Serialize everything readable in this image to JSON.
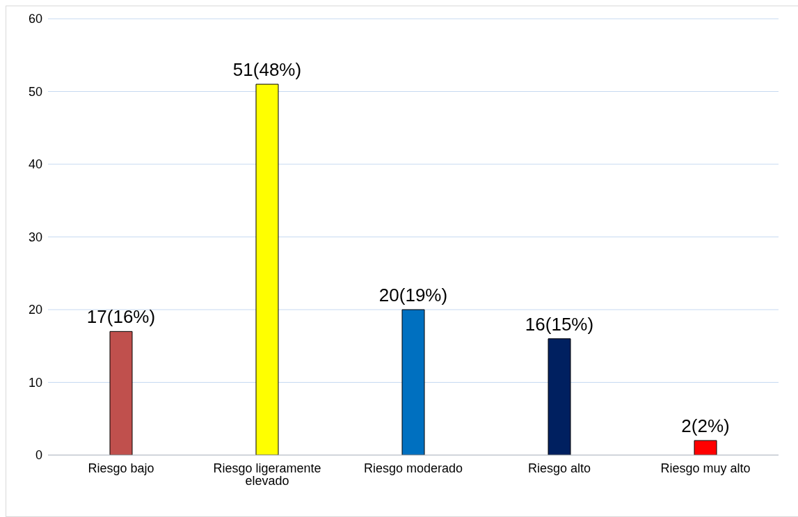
{
  "chart_data": {
    "type": "bar",
    "categories": [
      "Riesgo bajo",
      "Riesgo ligeramente elevado",
      "Riesgo moderado",
      "Riesgo alto",
      "Riesgo muy alto"
    ],
    "values": [
      17,
      51,
      20,
      16,
      2
    ],
    "colors": [
      "#c0504d",
      "#ffff00",
      "#0070c0",
      "#002060",
      "#ff0000"
    ],
    "value_labels": [
      "17(16%)",
      "51(48%)",
      "20(19%)",
      "16(15%)",
      "2(2%)"
    ],
    "ylim": [
      0,
      60
    ],
    "yticks": [
      0,
      10,
      20,
      30,
      40,
      50,
      60
    ],
    "grid": "y"
  }
}
